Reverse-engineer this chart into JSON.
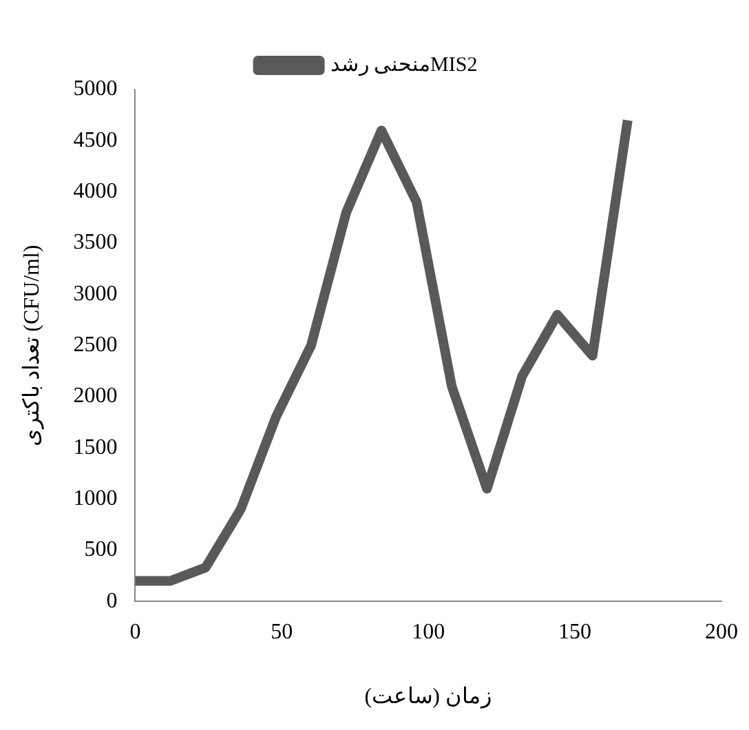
{
  "chart_data": {
    "type": "line",
    "xlabel": "زمان (ساعت)",
    "ylabel": "تعداد باکتری (CFU/ml)",
    "x": [
      0,
      12,
      24,
      36,
      48,
      60,
      72,
      84,
      96,
      108,
      120,
      132,
      144,
      156,
      168
    ],
    "series": [
      {
        "name": "منحنی رشدMIS2",
        "color": "#595959",
        "values": [
          200,
          200,
          330,
          900,
          1800,
          2500,
          3800,
          4600,
          3900,
          2100,
          1100,
          2200,
          2800,
          2400,
          4700
        ]
      }
    ],
    "xlim": [
      0,
      200
    ],
    "xticks": [
      0,
      50,
      100,
      150,
      200
    ],
    "ylim": [
      0,
      5000
    ],
    "yticks": [
      0,
      500,
      1000,
      1500,
      2000,
      2500,
      3000,
      3500,
      4000,
      4500,
      5000
    ],
    "grid": false,
    "legend": "top",
    "marker": "none",
    "line_style": "solid"
  }
}
